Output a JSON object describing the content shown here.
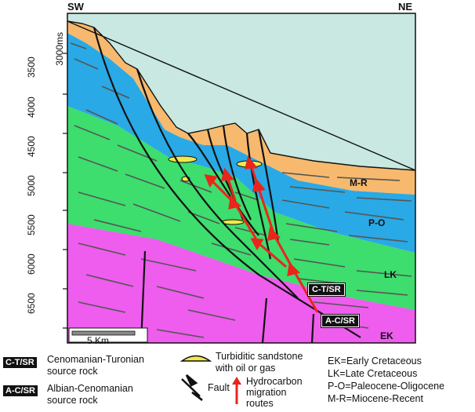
{
  "section": {
    "left_direction": "SW",
    "right_direction": "NE",
    "depth_ticks": [
      "3000ms",
      "3500",
      "4000",
      "4500",
      "5000",
      "5500",
      "6000",
      "6500"
    ],
    "layers": [
      {
        "key": "M-R",
        "label": "M-R",
        "color": "#f7b96e"
      },
      {
        "key": "P-O",
        "label": "P-O",
        "color": "#29a9e6"
      },
      {
        "key": "LK",
        "label": "LK",
        "color": "#3ddd6e"
      },
      {
        "key": "EK",
        "label": "EK",
        "color": "#ee5ded"
      }
    ],
    "water_color": "#c8e8e1",
    "source_rocks": [
      {
        "code": "C-T/SR"
      },
      {
        "code": "A-C/SR"
      }
    ],
    "scale_bar": "5 Km",
    "migration_color": "#e8261b",
    "sandstone_color": "#f2e84a"
  },
  "legend": {
    "ct_code": "C-T/SR",
    "ct_text_1": "Cenomanian-Turonian",
    "ct_text_2": "source rock",
    "ac_code": "A-C/SR",
    "ac_text_1": "Albian-Cenomanian",
    "ac_text_2": "source rock",
    "sand_text_1": "Turbiditic sandstone",
    "sand_text_2": "with oil or gas",
    "fault_text": "Fault",
    "hc_text_1": "Hydrocarbon",
    "hc_text_2": "migration",
    "hc_text_3": "routes",
    "ek": "EK=Early Cretaceous",
    "lk": "LK=Late Cretaceous",
    "po": "P-O=Paleocene-Oligocene",
    "mr": "M-R=Miocene-Recent"
  }
}
